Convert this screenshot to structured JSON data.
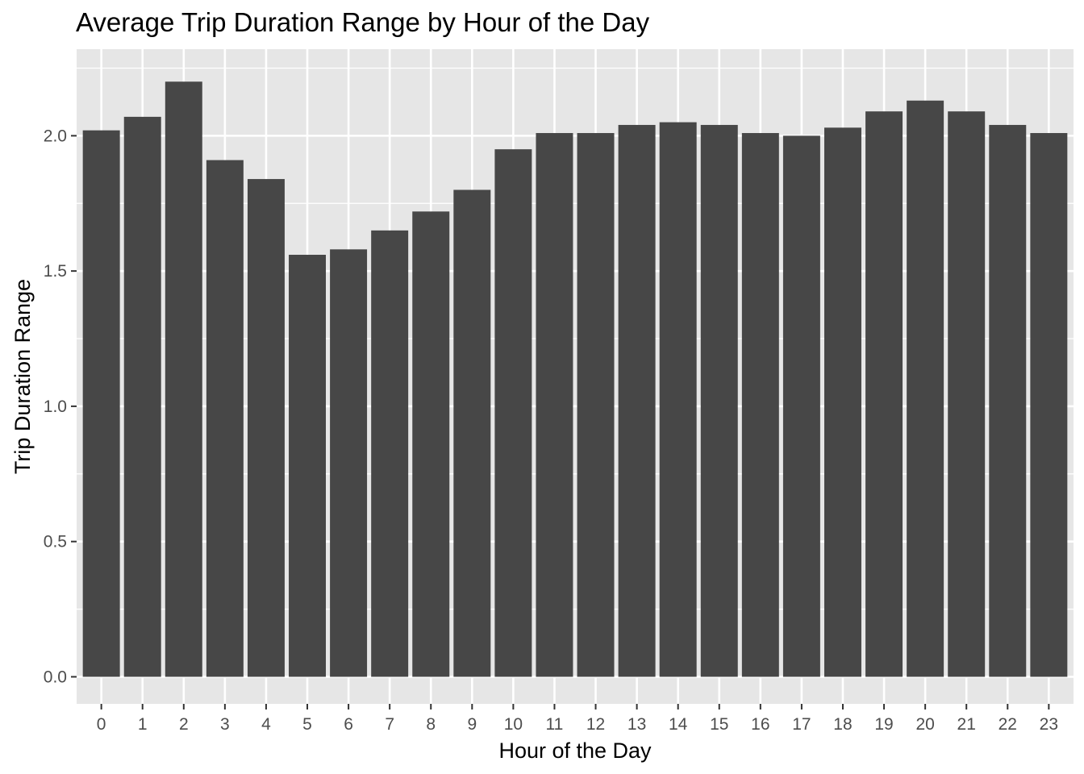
{
  "chart_data": {
    "type": "bar",
    "title": "Average Trip Duration Range by Hour of the Day",
    "xlabel": "Hour of the Day",
    "ylabel": "Trip Duration Range",
    "categories": [
      "0",
      "1",
      "2",
      "3",
      "4",
      "5",
      "6",
      "7",
      "8",
      "9",
      "10",
      "11",
      "12",
      "13",
      "14",
      "15",
      "16",
      "17",
      "18",
      "19",
      "20",
      "21",
      "22",
      "23"
    ],
    "values": [
      2.02,
      2.07,
      2.2,
      1.91,
      1.84,
      1.56,
      1.58,
      1.65,
      1.72,
      1.8,
      1.95,
      2.01,
      2.01,
      2.04,
      2.05,
      2.04,
      2.01,
      2.0,
      2.03,
      2.09,
      2.13,
      2.09,
      2.04,
      2.01
    ],
    "yticks": [
      "0.0",
      "0.5",
      "1.0",
      "1.5",
      "2.0"
    ],
    "ylim": [
      -0.1,
      2.32
    ],
    "grid": true,
    "bar_color": "#474747",
    "panel_color": "#e6e6e6",
    "grid_color": "#ffffff"
  }
}
